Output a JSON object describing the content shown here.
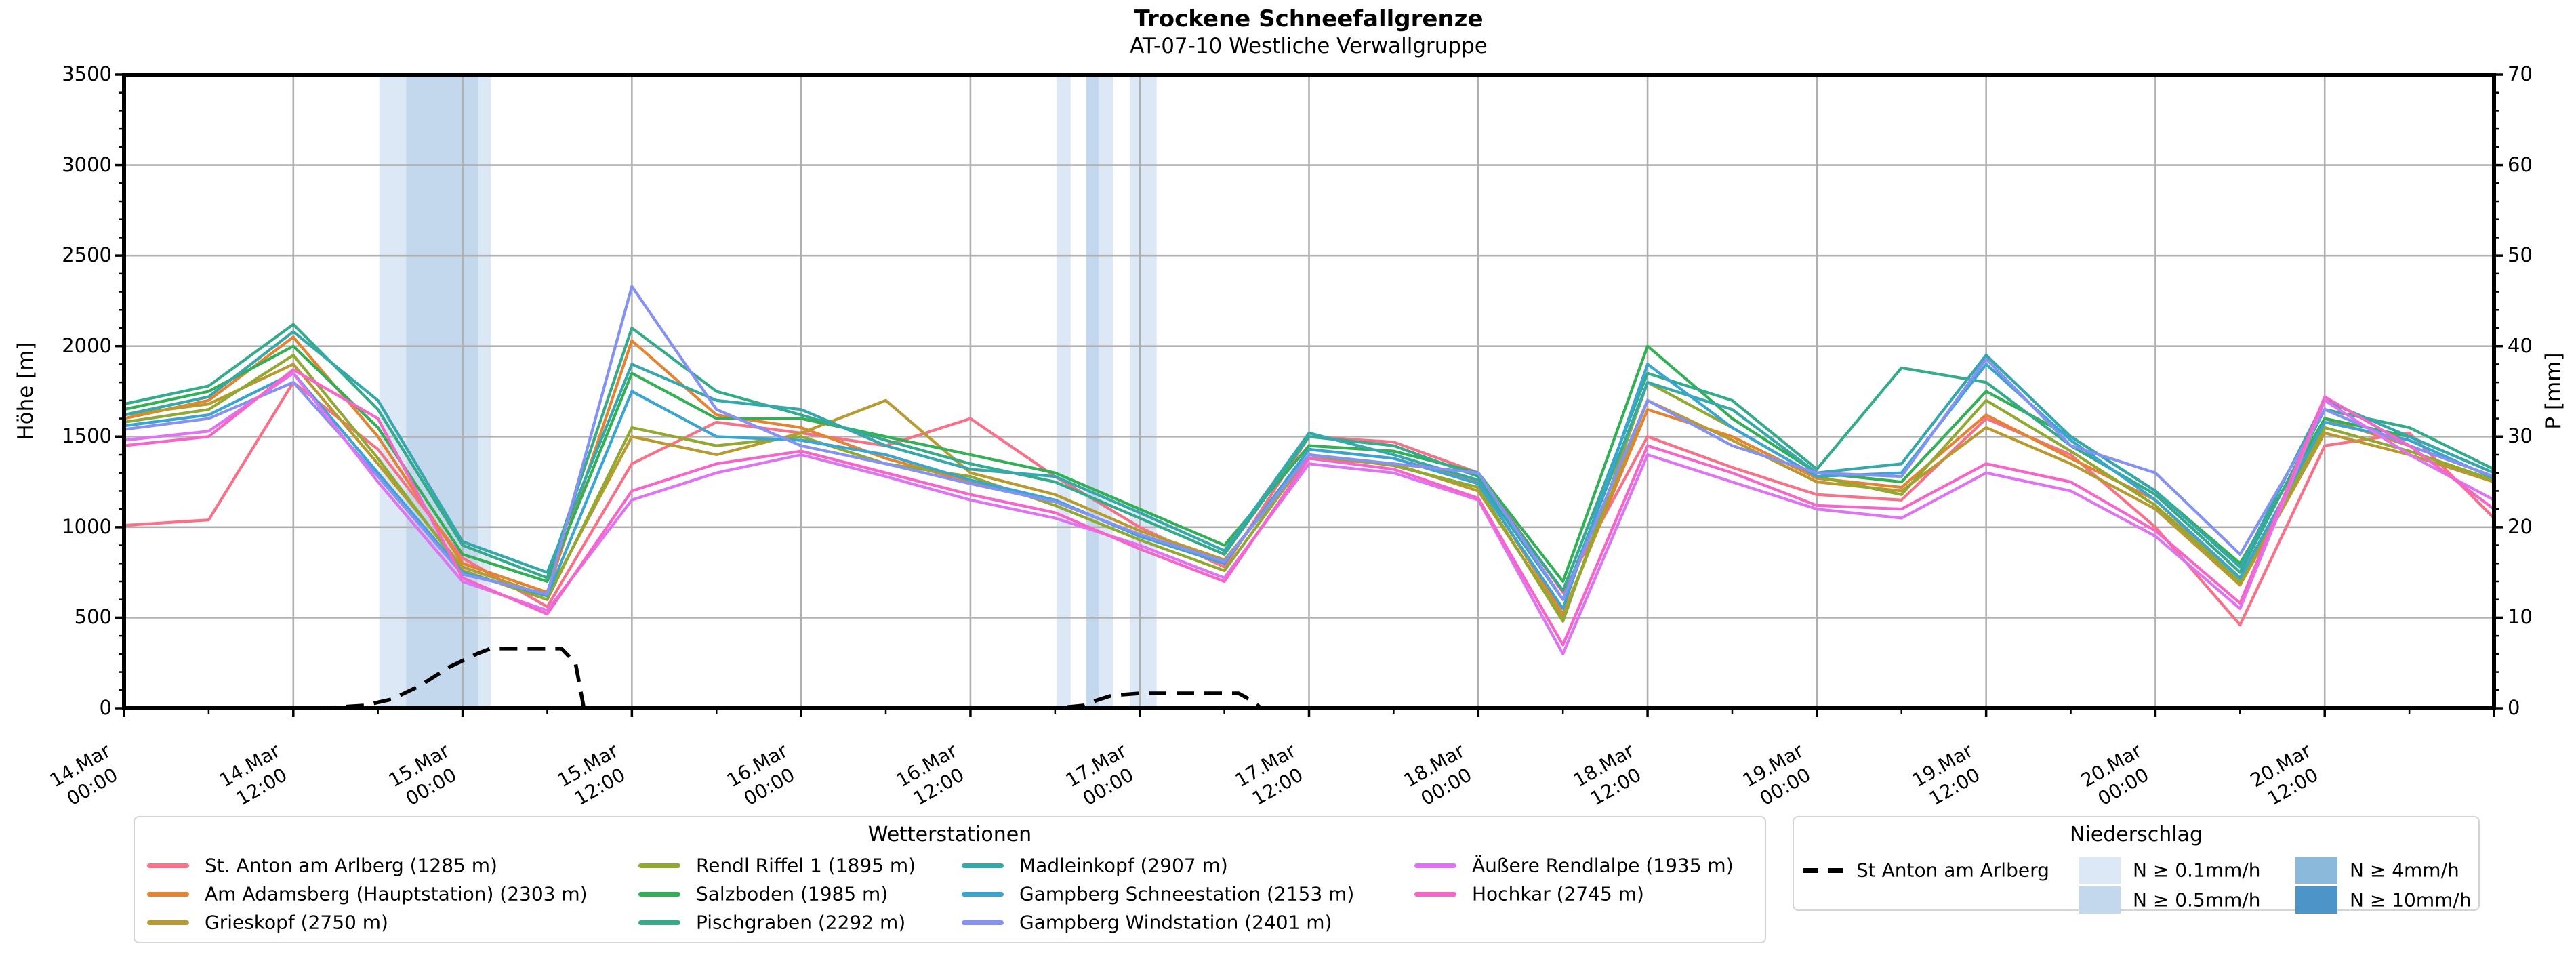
{
  "header": {
    "title": "Trockene Schneefallgrenze",
    "subtitle": "AT-07-10 Westliche Verwallgruppe"
  },
  "axes": {
    "y_left": {
      "label": "Höhe [m]",
      "min": 0,
      "max": 3500,
      "major_ticks": [
        0,
        500,
        1000,
        1500,
        2000,
        2500,
        3000,
        3500
      ],
      "minor_step": 100
    },
    "y_right": {
      "label": "P [mm]",
      "min": 0,
      "max": 70,
      "major_ticks": [
        0,
        10,
        20,
        30,
        40,
        50,
        60,
        70
      ],
      "minor_step": 2
    },
    "x": {
      "range_hours": [
        0,
        168
      ],
      "major_step_hours": 12,
      "minor_step_hours": 6,
      "tick_labels": [
        {
          "date": "14.Mar",
          "time": "00:00"
        },
        {
          "date": "14.Mar",
          "time": "12:00"
        },
        {
          "date": "15.Mar",
          "time": "00:00"
        },
        {
          "date": "15.Mar",
          "time": "12:00"
        },
        {
          "date": "16.Mar",
          "time": "00:00"
        },
        {
          "date": "16.Mar",
          "time": "12:00"
        },
        {
          "date": "17.Mar",
          "time": "00:00"
        },
        {
          "date": "17.Mar",
          "time": "12:00"
        },
        {
          "date": "18.Mar",
          "time": "00:00"
        },
        {
          "date": "18.Mar",
          "time": "12:00"
        },
        {
          "date": "19.Mar",
          "time": "00:00"
        },
        {
          "date": "19.Mar",
          "time": "12:00"
        },
        {
          "date": "20.Mar",
          "time": "00:00"
        },
        {
          "date": "20.Mar",
          "time": "12:00"
        }
      ]
    }
  },
  "chart_data": {
    "type": "line",
    "title": "Trockene Schneefallgrenze",
    "subtitle": "AT-07-10 Westliche Verwallgruppe",
    "x_unit": "hours since 14.Mar 00:00",
    "ylabel_left": "Höhe [m]",
    "ylabel_right": "P [mm]",
    "ylim_left": [
      0,
      3500
    ],
    "ylim_right": [
      0,
      70
    ],
    "grid": true,
    "x_hours": [
      0,
      6,
      12,
      18,
      24,
      30,
      36,
      42,
      48,
      54,
      60,
      66,
      72,
      78,
      84,
      90,
      96,
      102,
      108,
      114,
      120,
      126,
      132,
      138,
      144,
      150,
      156,
      162,
      168
    ],
    "series": [
      {
        "name": "St. Anton am Arlberg",
        "elevation_m": 1285,
        "color": "#f77189",
        "values": [
          1010,
          1040,
          1800,
          1430,
          830,
          560,
          1350,
          1580,
          1520,
          1450,
          1600,
          1280,
          1000,
          780,
          1500,
          1470,
          1300,
          640,
          1500,
          1330,
          1180,
          1150,
          1600,
          1400,
          1000,
          460,
          1450,
          1520,
          1050
        ]
      },
      {
        "name": "Am Adamsberg (Hauptstation)",
        "elevation_m": 2303,
        "color": "#e28431",
        "values": [
          1600,
          1700,
          2050,
          1500,
          800,
          640,
          2030,
          1620,
          1550,
          1380,
          1250,
          1150,
          950,
          800,
          1430,
          1380,
          1250,
          520,
          1650,
          1500,
          1270,
          1220,
          1620,
          1380,
          1150,
          700,
          1600,
          1450,
          1280
        ]
      },
      {
        "name": "Grieskopf",
        "elevation_m": 2750,
        "color": "#b89a31",
        "values": [
          1620,
          1680,
          1900,
          1350,
          780,
          620,
          1500,
          1400,
          1520,
          1700,
          1300,
          1180,
          980,
          820,
          1380,
          1350,
          1200,
          500,
          1700,
          1480,
          1250,
          1200,
          1550,
          1350,
          1100,
          680,
          1520,
          1400,
          1250
        ]
      },
      {
        "name": "Rendl Riffel 1",
        "elevation_m": 1895,
        "color": "#91a832",
        "values": [
          1580,
          1650,
          1950,
          1380,
          760,
          600,
          1550,
          1450,
          1500,
          1350,
          1280,
          1120,
          930,
          760,
          1400,
          1340,
          1220,
          480,
          1800,
          1550,
          1280,
          1180,
          1700,
          1420,
          1120,
          700,
          1550,
          1420,
          1260
        ]
      },
      {
        "name": "Salzboden",
        "elevation_m": 1985,
        "color": "#33af55",
        "values": [
          1650,
          1750,
          2000,
          1550,
          850,
          700,
          1850,
          1600,
          1600,
          1500,
          1400,
          1300,
          1100,
          900,
          1450,
          1420,
          1300,
          700,
          2000,
          1600,
          1300,
          1250,
          1750,
          1500,
          1200,
          800,
          1600,
          1500,
          1300
        ]
      },
      {
        "name": "Pischgraben",
        "elevation_m": 2292,
        "color": "#35ab8c",
        "values": [
          1680,
          1780,
          2120,
          1650,
          900,
          720,
          2100,
          1750,
          1620,
          1480,
          1350,
          1250,
          1050,
          850,
          1500,
          1450,
          1280,
          650,
          1850,
          1700,
          1320,
          1880,
          1800,
          1450,
          1180,
          750,
          1650,
          1550,
          1320
        ]
      },
      {
        "name": "Madleinkopf",
        "elevation_m": 2907,
        "color": "#36a8ab",
        "values": [
          1620,
          1720,
          2080,
          1700,
          920,
          750,
          1900,
          1700,
          1650,
          1450,
          1320,
          1280,
          1080,
          870,
          1520,
          1400,
          1260,
          600,
          1800,
          1650,
          1300,
          1350,
          1950,
          1500,
          1200,
          780,
          1700,
          1500,
          1300
        ]
      },
      {
        "name": "Gampberg Schneestation",
        "elevation_m": 2153,
        "color": "#3aa5d1",
        "values": [
          1560,
          1620,
          1850,
          1300,
          750,
          620,
          1750,
          1500,
          1480,
          1400,
          1260,
          1150,
          950,
          800,
          1430,
          1380,
          1240,
          550,
          1900,
          1550,
          1280,
          1300,
          1900,
          1480,
          1150,
          720,
          1580,
          1480,
          1270
        ]
      },
      {
        "name": "Gampberg Windstation",
        "elevation_m": 2401,
        "color": "#8691f4",
        "values": [
          1540,
          1600,
          1800,
          1280,
          740,
          630,
          2330,
          1650,
          1450,
          1350,
          1240,
          1140,
          960,
          810,
          1400,
          1350,
          1300,
          600,
          1700,
          1450,
          1300,
          1280,
          1930,
          1450,
          1300,
          850,
          1650,
          1450,
          1280
        ]
      },
      {
        "name": "Äußere Rendlalpe",
        "elevation_m": 1935,
        "color": "#de74f2",
        "values": [
          1480,
          1530,
          1850,
          1250,
          700,
          540,
          1150,
          1300,
          1400,
          1280,
          1150,
          1050,
          900,
          720,
          1350,
          1300,
          1150,
          300,
          1400,
          1250,
          1100,
          1050,
          1300,
          1200,
          950,
          550,
          1700,
          1400,
          1150
        ]
      },
      {
        "name": "Hochkar",
        "elevation_m": 2745,
        "color": "#f566c8",
        "values": [
          1450,
          1500,
          1870,
          1600,
          720,
          520,
          1200,
          1350,
          1420,
          1300,
          1180,
          1080,
          880,
          700,
          1380,
          1320,
          1160,
          350,
          1450,
          1300,
          1120,
          1100,
          1350,
          1250,
          980,
          580,
          1720,
          1450,
          1100
        ]
      }
    ],
    "precipitation_line": {
      "name": "St Anton am Arlberg",
      "color": "#000000",
      "style": "dashed",
      "axis": "right",
      "unit": "mm",
      "points": [
        [
          0,
          0
        ],
        [
          14,
          0
        ],
        [
          17,
          0.3
        ],
        [
          19,
          1.0
        ],
        [
          21,
          2.5
        ],
        [
          23,
          4.5
        ],
        [
          25,
          6.0
        ],
        [
          26,
          6.6
        ],
        [
          31,
          6.6
        ],
        [
          32,
          5.0
        ],
        [
          32.6,
          0
        ],
        [
          66,
          0
        ],
        [
          68,
          0.3
        ],
        [
          69,
          0.9
        ],
        [
          70,
          1.4
        ],
        [
          72,
          1.65
        ],
        [
          79,
          1.65
        ],
        [
          80,
          0.8
        ],
        [
          80.6,
          0
        ],
        [
          168,
          0
        ]
      ]
    },
    "precipitation_bands": [
      {
        "start_hour": 18.1,
        "end_hour": 20.0,
        "intensity": "N ≥ 0.1mm/h",
        "color": "#dce8f5"
      },
      {
        "start_hour": 20.0,
        "end_hour": 25.1,
        "intensity": "N ≥ 0.5mm/h",
        "color": "#c3d8ec"
      },
      {
        "start_hour": 25.1,
        "end_hour": 26.0,
        "intensity": "N ≥ 0.1mm/h",
        "color": "#dce8f5"
      },
      {
        "start_hour": 66.1,
        "end_hour": 67.1,
        "intensity": "N ≥ 0.1mm/h",
        "color": "#dce8f5"
      },
      {
        "start_hour": 68.2,
        "end_hour": 69.1,
        "intensity": "N ≥ 0.5mm/h",
        "color": "#c3d8ec"
      },
      {
        "start_hour": 69.1,
        "end_hour": 70.1,
        "intensity": "N ≥ 0.1mm/h",
        "color": "#dce8f5"
      },
      {
        "start_hour": 71.3,
        "end_hour": 73.2,
        "intensity": "N ≥ 0.1mm/h",
        "color": "#dce8f5"
      }
    ]
  },
  "legends": {
    "stations": {
      "title": "Wetterstationen",
      "items": [
        {
          "label": "St. Anton am Arlberg (1285 m)",
          "color": "#f77189"
        },
        {
          "label": "Am Adamsberg (Hauptstation) (2303 m)",
          "color": "#e28431"
        },
        {
          "label": "Grieskopf (2750 m)",
          "color": "#b89a31"
        },
        {
          "label": "Rendl Riffel 1 (1895 m)",
          "color": "#91a832"
        },
        {
          "label": "Salzboden (1985 m)",
          "color": "#33af55"
        },
        {
          "label": "Pischgraben (2292 m)",
          "color": "#35ab8c"
        },
        {
          "label": "Madleinkopf (2907 m)",
          "color": "#36a8ab"
        },
        {
          "label": "Gampberg Schneestation (2153 m)",
          "color": "#3aa5d1"
        },
        {
          "label": "Gampberg Windstation (2401 m)",
          "color": "#8691f4"
        },
        {
          "label": "Äußere Rendlalpe (1935 m)",
          "color": "#de74f2"
        },
        {
          "label": "Hochkar (2745 m)",
          "color": "#f566c8"
        }
      ]
    },
    "precipitation": {
      "title": "Niederschlag",
      "line_item": {
        "label": "St Anton am Arlberg"
      },
      "patches": [
        {
          "label": "N ≥ 0.1mm/h",
          "color": "#dce8f5"
        },
        {
          "label": "N ≥ 0.5mm/h",
          "color": "#c3d8ec"
        },
        {
          "label": "N ≥ 4mm/h",
          "color": "#8bb9dc"
        },
        {
          "label": "N ≥ 10mm/h",
          "color": "#4d95c8"
        }
      ]
    }
  }
}
